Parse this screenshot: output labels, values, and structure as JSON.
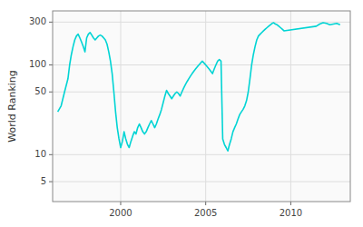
{
  "chart_data": {
    "type": "line",
    "ylabel": "World Ranking",
    "color": "#00d4d4",
    "log": "y",
    "grid": true,
    "xlim": [
      1996.0,
      2013.5
    ],
    "ylim": [
      3,
      400
    ],
    "xticks": [
      2000,
      2005,
      2010
    ],
    "yticks": [
      5,
      10,
      50,
      100,
      300
    ],
    "x": [
      1996.3,
      1996.5,
      1996.7,
      1996.9,
      1997.0,
      1997.1,
      1997.2,
      1997.3,
      1997.4,
      1997.5,
      1997.6,
      1997.7,
      1997.8,
      1997.9,
      1998.0,
      1998.1,
      1998.2,
      1998.3,
      1998.4,
      1998.5,
      1998.6,
      1998.7,
      1998.8,
      1998.9,
      1999.0,
      1999.1,
      1999.2,
      1999.3,
      1999.4,
      1999.5,
      1999.6,
      1999.7,
      1999.8,
      1999.9,
      2000.0,
      2000.1,
      2000.2,
      2000.3,
      2000.4,
      2000.5,
      2000.6,
      2000.7,
      2000.8,
      2000.9,
      2001.0,
      2001.1,
      2001.2,
      2001.3,
      2001.4,
      2001.5,
      2001.6,
      2001.7,
      2001.8,
      2001.9,
      2002.0,
      2002.1,
      2002.2,
      2002.3,
      2002.4,
      2002.5,
      2002.6,
      2002.7,
      2002.8,
      2002.9,
      2003.0,
      2003.1,
      2003.2,
      2003.3,
      2003.4,
      2003.5,
      2003.6,
      2003.7,
      2003.8,
      2003.9,
      2004.0,
      2004.1,
      2004.2,
      2004.3,
      2004.4,
      2004.5,
      2004.6,
      2004.7,
      2004.8,
      2004.9,
      2005.0,
      2005.1,
      2005.2,
      2005.3,
      2005.4,
      2005.5,
      2005.6,
      2005.7,
      2005.8,
      2005.9,
      2006.0,
      2006.1,
      2006.2,
      2006.3,
      2006.4,
      2006.5,
      2006.6,
      2006.7,
      2006.8,
      2006.9,
      2007.0,
      2007.1,
      2007.2,
      2007.3,
      2007.4,
      2007.5,
      2007.6,
      2007.7,
      2007.8,
      2007.9,
      2008.0,
      2008.1,
      2008.2,
      2008.3,
      2008.4,
      2008.5,
      2008.6,
      2008.7,
      2008.8,
      2008.9,
      2009.0,
      2009.1,
      2009.2,
      2009.3,
      2009.4,
      2009.5,
      2009.6,
      2011.5,
      2011.7,
      2011.9,
      2012.1,
      2012.3,
      2012.5,
      2012.7,
      2012.9
    ],
    "values": [
      30,
      35,
      50,
      70,
      100,
      130,
      160,
      190,
      210,
      220,
      200,
      180,
      160,
      140,
      200,
      220,
      230,
      215,
      200,
      190,
      200,
      210,
      215,
      210,
      200,
      190,
      170,
      140,
      110,
      80,
      50,
      30,
      20,
      15,
      12,
      14,
      18,
      15,
      13,
      12,
      14,
      16,
      18,
      17,
      20,
      22,
      20,
      18,
      17,
      18,
      20,
      22,
      24,
      22,
      20,
      22,
      25,
      28,
      32,
      38,
      45,
      52,
      48,
      45,
      42,
      45,
      48,
      50,
      48,
      45,
      50,
      55,
      60,
      65,
      70,
      75,
      80,
      85,
      90,
      95,
      100,
      105,
      110,
      105,
      100,
      95,
      90,
      85,
      80,
      90,
      100,
      110,
      115,
      110,
      15,
      13,
      12,
      11,
      13,
      15,
      18,
      20,
      22,
      25,
      28,
      30,
      32,
      35,
      40,
      50,
      70,
      100,
      130,
      160,
      190,
      210,
      220,
      230,
      240,
      250,
      260,
      270,
      280,
      290,
      295,
      285,
      280,
      270,
      260,
      250,
      240,
      270,
      285,
      295,
      290,
      280,
      285,
      290,
      280
    ]
  }
}
